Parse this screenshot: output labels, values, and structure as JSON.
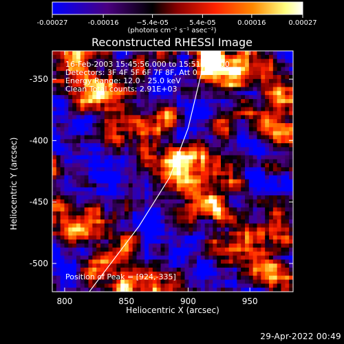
{
  "chart_data": {
    "type": "heatmap",
    "title": "Reconstructed RHESSI Image",
    "xlabel": "Heliocentric X (arcsec)",
    "ylabel": "Heliocentric Y (arcsec)",
    "xlim": [
      790,
      985
    ],
    "ylim": [
      -523,
      -327
    ],
    "x_ticks": [
      800,
      850,
      900,
      950
    ],
    "y_ticks": [
      -350,
      -400,
      -450,
      -500
    ],
    "colorbar": {
      "min": -0.00027,
      "max": 0.00027,
      "tick_values": [
        -0.00027,
        -0.00016,
        -5.4e-05,
        5.4e-05,
        0.00016,
        0.00027
      ],
      "tick_labels": [
        "-0.00027",
        "-0.00016",
        "−5.4e-05",
        "5.4e-05",
        "0.00016",
        "0.00027"
      ],
      "units": "(photons cm⁻² s⁻¹ asec⁻²)",
      "colors": [
        "#0000ff",
        "#4a0080",
        "#000000",
        "#8b0000",
        "#ff2200",
        "#ff8800",
        "#ffff80",
        "#ffffff"
      ]
    },
    "limb_curve": {
      "x": [
        820,
        860,
        885,
        900,
        915
      ],
      "y": [
        -523,
        -470,
        -430,
        -390,
        -327
      ]
    },
    "peak_position": [
      924,
      -335
    ]
  },
  "annotations": {
    "time_range": "16-Feb-2003 15:45:56.000 to 15:51:56.000",
    "detectors": "Detectors: 3F 4F 5F 6F 7F 8F, Att 0",
    "energy_range": "Energy Range: 12.0 - 25.0 keV",
    "clean": "Clean    Total counts: 2.91E+03",
    "peak_text": "Position of Peak = [924,-335]"
  },
  "footer": {
    "timestamp": "29-Apr-2022 00:49"
  }
}
